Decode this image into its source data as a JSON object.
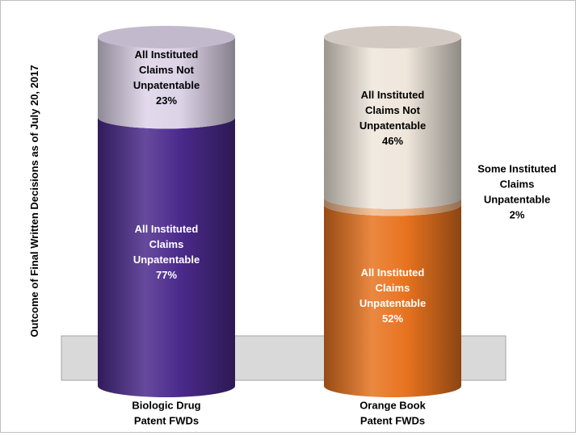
{
  "chart_data": {
    "type": "bar",
    "stacked": true,
    "style": "3d-cylinder",
    "ylabel": "Outcome of Final Written Decisions as of July 20, 2017",
    "categories": [
      "Biologic Drug\nPatent FWDs",
      "Orange Book\nPatent FWDs"
    ],
    "series": [
      {
        "name": "All Instituted Claims Unpatentable",
        "values": [
          77,
          52
        ],
        "colors": [
          "#4b2a8c",
          "#e8731f"
        ],
        "labels": [
          "All Instituted\nClaims\nUnpatentable\n77%",
          "All Instituted\nClaims\nUnpatentable\n52%"
        ],
        "label_color": "#ffffff"
      },
      {
        "name": "Some Instituted Claims Unpatentable",
        "values": [
          0,
          2
        ],
        "colors": [
          "#ffffff",
          "#f0b88a"
        ],
        "labels": [
          "",
          ""
        ],
        "outside_label": "Some Instituted\nClaims\nUnpatentable\n2%"
      },
      {
        "name": "All Instituted Claims Not Unpatentable",
        "values": [
          23,
          46
        ],
        "colors": [
          "#ddd3e8",
          "#efe6dc"
        ],
        "labels": [
          "All Instituted\nClaims Not\nUnpatentable\n23%",
          "All Instituted\nClaims Not\nUnpatentable\n46%"
        ],
        "label_color": "#000000"
      }
    ],
    "ylim": [
      0,
      100
    ],
    "grid": false,
    "legend": "none"
  }
}
